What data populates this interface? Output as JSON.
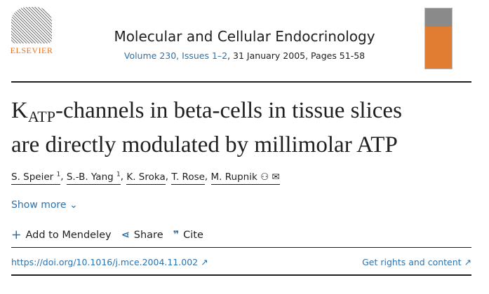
{
  "publisher": {
    "name": "ELSEVIER"
  },
  "journal": {
    "title": "Molecular and Cellular Endocrinology",
    "volume_link": "Volume 230, Issues 1–2",
    "details": ", 31 January 2005, Pages 51-58"
  },
  "article": {
    "title_main": "K",
    "title_sub": "ATP",
    "title_rest": "-channels in beta-cells in tissue slices",
    "title_line2": "are directly modulated by millimolar ATP"
  },
  "authors": [
    {
      "name": "S. Speier",
      "sup": "1"
    },
    {
      "name": "S.-B. Yang",
      "sup": "1"
    },
    {
      "name": "K. Sroka",
      "sup": ""
    },
    {
      "name": "T. Rose",
      "sup": ""
    },
    {
      "name": "M. Rupnik",
      "sup": ""
    }
  ],
  "show_more": "Show more",
  "tools": {
    "mendeley": "Add to Mendeley",
    "share": "Share",
    "cite": "Cite"
  },
  "doi": "https://doi.org/10.1016/j.mce.2004.11.002 ↗",
  "rights": "Get rights and content ↗"
}
